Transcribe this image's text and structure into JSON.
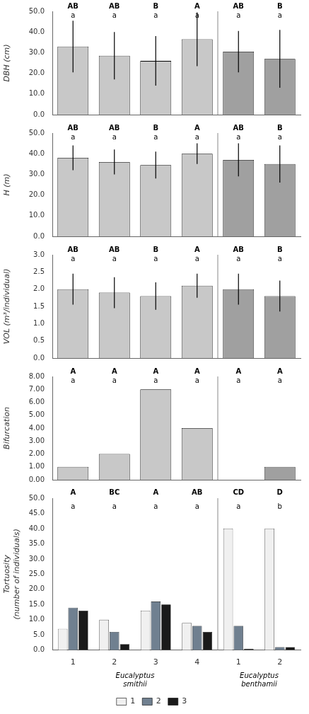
{
  "chart_data": [
    {
      "type": "bar",
      "categories": [
        "1",
        "2",
        "3",
        "4",
        "1",
        "2"
      ],
      "values": [
        33.0,
        28.5,
        26.0,
        36.5,
        30.5,
        27.0
      ],
      "errors": [
        12.5,
        11.5,
        12.0,
        13.0,
        10.0,
        14.0
      ],
      "colors": [
        "#c8c8c8",
        "#c8c8c8",
        "#c8c8c8",
        "#c8c8c8",
        "#a0a0a0",
        "#a0a0a0"
      ],
      "ylabel": "DBH (cm)",
      "ylim": [
        0,
        50
      ],
      "yticks": [
        {
          "value": 0.0,
          "label": "0.0"
        },
        {
          "value": 10.0,
          "label": "10.0"
        },
        {
          "value": 20.0,
          "label": "20.0"
        },
        {
          "value": 30.0,
          "label": "30.0"
        },
        {
          "value": 40.0,
          "label": "40.0"
        },
        {
          "value": 50.0,
          "label": "50.0"
        }
      ],
      "grid": false,
      "tick_labels": "y",
      "annotations": [
        {
          "category": 0,
          "text": [
            "AB",
            "a"
          ]
        },
        {
          "category": 1,
          "text": [
            "AB",
            "a"
          ]
        },
        {
          "category": 2,
          "text": [
            "B",
            "a"
          ]
        },
        {
          "category": 3,
          "text": [
            "A",
            "a"
          ]
        },
        {
          "category": 4,
          "text": [
            "AB",
            "a"
          ]
        },
        {
          "category": 5,
          "text": [
            "B",
            "a"
          ]
        }
      ]
    },
    {
      "type": "bar",
      "categories": [
        "1",
        "2",
        "3",
        "4",
        "1",
        "2"
      ],
      "values": [
        38.0,
        36.0,
        34.5,
        40.0,
        37.0,
        35.0
      ],
      "errors": [
        6.0,
        6.0,
        6.5,
        5.0,
        8.0,
        9.0
      ],
      "colors": [
        "#c8c8c8",
        "#c8c8c8",
        "#c8c8c8",
        "#c8c8c8",
        "#a0a0a0",
        "#a0a0a0"
      ],
      "ylabel": "H (m)",
      "ylim": [
        0,
        50
      ],
      "yticks": [
        {
          "value": 0.0,
          "label": "0.0"
        },
        {
          "value": 10.0,
          "label": "10.0"
        },
        {
          "value": 20.0,
          "label": "20.0"
        },
        {
          "value": 30.0,
          "label": "30.0"
        },
        {
          "value": 40.0,
          "label": "40.0"
        },
        {
          "value": 50.0,
          "label": "50.0"
        }
      ],
      "grid": false,
      "tick_labels": "y",
      "annotations": [
        {
          "category": 0,
          "text": [
            "AB",
            "a"
          ]
        },
        {
          "category": 1,
          "text": [
            "AB",
            "a"
          ]
        },
        {
          "category": 2,
          "text": [
            "B",
            "a"
          ]
        },
        {
          "category": 3,
          "text": [
            "A",
            "a"
          ]
        },
        {
          "category": 4,
          "text": [
            "AB",
            "a"
          ]
        },
        {
          "category": 5,
          "text": [
            "B",
            "a"
          ]
        }
      ]
    },
    {
      "type": "bar",
      "categories": [
        "1",
        "2",
        "3",
        "4",
        "1",
        "2"
      ],
      "values": [
        2.0,
        1.9,
        1.8,
        2.1,
        2.0,
        1.8
      ],
      "errors": [
        0.45,
        0.45,
        0.4,
        0.35,
        0.45,
        0.45
      ],
      "colors": [
        "#c8c8c8",
        "#c8c8c8",
        "#c8c8c8",
        "#c8c8c8",
        "#a0a0a0",
        "#a0a0a0"
      ],
      "ylabel": "VOL (m³/individual)",
      "ylim": [
        0.0,
        3.0
      ],
      "yticks": [
        {
          "value": 0.0,
          "label": "0.0"
        },
        0.5,
        {
          "value": 1.0,
          "label": "1.0"
        },
        1.5,
        {
          "value": 2.0,
          "label": "2.0"
        },
        2.5,
        {
          "value": 3.0,
          "label": "3.0"
        }
      ],
      "grid": false,
      "tick_labels": "y",
      "annotations": [
        {
          "category": 0,
          "text": [
            "AB",
            "a"
          ]
        },
        {
          "category": 1,
          "text": [
            "AB",
            "a"
          ]
        },
        {
          "category": 2,
          "text": [
            "B",
            "a"
          ]
        },
        {
          "category": 3,
          "text": [
            "A",
            "a"
          ]
        },
        {
          "category": 4,
          "text": [
            "AB",
            "a"
          ]
        },
        {
          "category": 5,
          "text": [
            "B",
            "a"
          ]
        }
      ]
    },
    {
      "type": "bar",
      "categories": [
        "1",
        "2",
        "3",
        "4",
        "1",
        "2"
      ],
      "values": [
        1.0,
        2.0,
        7.0,
        4.0,
        0.0,
        1.0
      ],
      "colors": [
        "#c8c8c8",
        "#c8c8c8",
        "#c8c8c8",
        "#c8c8c8",
        "#a0a0a0",
        "#a0a0a0"
      ],
      "ylabel": "Bifurcation",
      "ylim": [
        0.0,
        8.0
      ],
      "yticks": [
        {
          "value": 0.0,
          "label": "0.00"
        },
        {
          "value": 1.0,
          "label": "1.00"
        },
        {
          "value": 2.0,
          "label": "2.00"
        },
        {
          "value": 3.0,
          "label": "3.00"
        },
        {
          "value": 4.0,
          "label": "4.00"
        },
        {
          "value": 5.0,
          "label": "5.00"
        },
        {
          "value": 6.0,
          "label": "6.00"
        },
        {
          "value": 7.0,
          "label": "7.00"
        },
        {
          "value": 8.0,
          "label": "8.00"
        }
      ],
      "grid": false,
      "tick_labels": "y",
      "annotations": [
        {
          "category": 0,
          "text": [
            "A",
            "a"
          ]
        },
        {
          "category": 1,
          "text": [
            "A",
            "a"
          ]
        },
        {
          "category": 2,
          "text": [
            "A",
            "a"
          ]
        },
        {
          "category": 3,
          "text": [
            "A",
            "a"
          ]
        },
        {
          "category": 4,
          "text": [
            "A",
            "a"
          ]
        },
        {
          "category": 5,
          "text": [
            "A",
            "a"
          ]
        }
      ]
    },
    {
      "type": "bar",
      "categories": [
        "1",
        "2",
        "3",
        "4",
        "1",
        "2"
      ],
      "series": [
        {
          "name": "1",
          "color": "#f0f0f0",
          "values": [
            7.0,
            10.0,
            13.0,
            9.0,
            40.0,
            40.0
          ]
        },
        {
          "name": "2",
          "color": "#708090",
          "values": [
            14.0,
            6.0,
            16.0,
            8.0,
            8.0,
            1.0
          ]
        },
        {
          "name": "3",
          "color": "#1a1a1a",
          "values": [
            13.0,
            2.0,
            15.0,
            6.0,
            0.5,
            1.0
          ]
        }
      ],
      "ylabel": "Tortuosity\n(number of individuals)",
      "ylim": [
        0.0,
        50.0
      ],
      "yticks": [
        {
          "value": 0.0,
          "label": "0.0"
        },
        {
          "value": 5.0,
          "label": "5.0"
        },
        {
          "value": 10.0,
          "label": "10.0"
        },
        {
          "value": 15.0,
          "label": "15.0"
        },
        {
          "value": 20.0,
          "label": "20.0"
        },
        {
          "value": 25.0,
          "label": "25.0"
        },
        {
          "value": 30.0,
          "label": "30.0"
        },
        {
          "value": 35.0,
          "label": "35.0"
        },
        {
          "value": 40.0,
          "label": "40.0"
        },
        {
          "value": 45.0,
          "label": "45.0"
        },
        {
          "value": 50.0,
          "label": "50.0"
        }
      ],
      "grid": false,
      "legend": "bottom",
      "annotations": [
        {
          "category": 0,
          "text": [
            "A",
            "a"
          ]
        },
        {
          "category": 1,
          "text": [
            "BC",
            "a"
          ]
        },
        {
          "category": 2,
          "text": [
            "A",
            "a"
          ]
        },
        {
          "category": 3,
          "text": [
            "AB",
            "a"
          ]
        },
        {
          "category": 4,
          "text": [
            "CD",
            "a"
          ]
        },
        {
          "category": 5,
          "text": [
            "D",
            "b"
          ]
        },
        {
          "categories": [
            0,
            1,
            2,
            3
          ],
          "text": "Eucalyptus\nsmithii"
        },
        {
          "categories": [
            4,
            5
          ],
          "text": "Eucalyptus\nbenthamii"
        }
      ]
    }
  ]
}
